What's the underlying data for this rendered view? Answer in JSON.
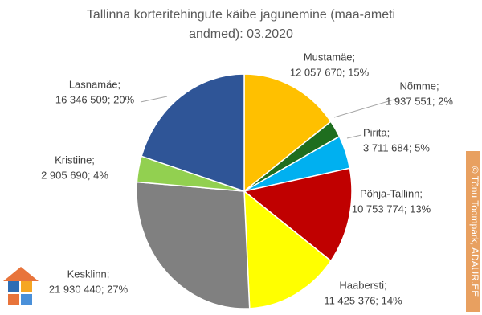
{
  "chart_data": {
    "type": "pie",
    "title": "Tallinna korteritehingute käibe jagunemine (maa-ameti",
    "subtitle": "andmed): 03.2020",
    "categories": [
      "Mustamäe;",
      "Nõmme;",
      "Pirita;",
      "Põhja-Tallinn;",
      "Haabersti;",
      "Kesklinn;",
      "Kristiine;",
      "Lasnamäe;"
    ],
    "values": [
      12057670,
      1937551,
      3711684,
      10753774,
      11425376,
      21930440,
      2905690,
      16346509
    ],
    "value_labels": [
      "12 057 670; 15%",
      "1 937 551; 2%",
      "3 711 684; 5%",
      "10 753 774; 13%",
      "11 425 376; 14%",
      "21 930 440; 27%",
      "2 905 690; 4%",
      "16 346 509; 20%"
    ],
    "colors": [
      "#ffc000",
      "#1f6e1f",
      "#00b0f0",
      "#c00000",
      "#ffff00",
      "#808080",
      "#92d050",
      "#2f5597"
    ],
    "watermark": "© Tõnu Toompark, ADAUR.EE"
  }
}
